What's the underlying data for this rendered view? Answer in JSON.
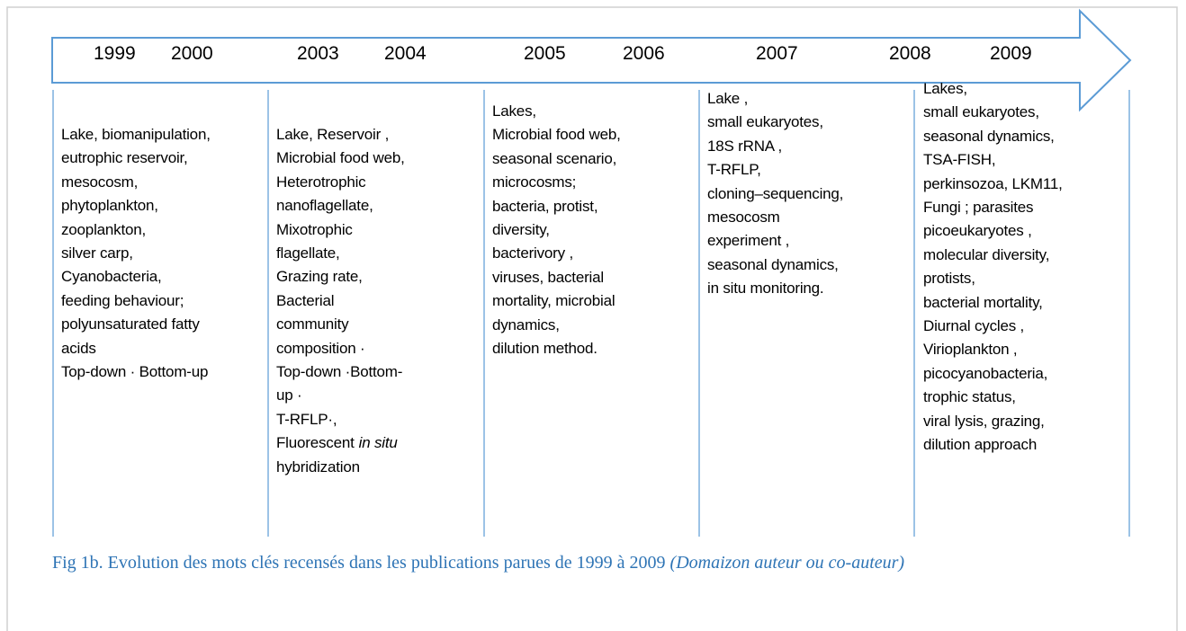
{
  "years": [
    "1999",
    "2000",
    "2003",
    "2004",
    "2005",
    "2006",
    "2007",
    "2008",
    "2009"
  ],
  "columns": [
    {
      "lines": [
        "Lake, biomanipulation,",
        "eutrophic reservoir,",
        "mesocosm,",
        "phytoplankton,",
        "zooplankton,",
        "silver carp,",
        "Cyanobacteria,",
        "feeding behaviour;",
        "polyunsaturated fatty",
        "acids",
        "Top-down · Bottom-up"
      ]
    },
    {
      "lines": [
        "Lake, Reservoir ,",
        "Microbial food web,",
        "Heterotrophic",
        "nanoflagellate,",
        "Mixotrophic",
        "flagellate,",
        "Grazing rate,",
        "Bacterial",
        "community",
        "composition ·",
        "Top-down ·Bottom-",
        "up ·",
        "T-RFLP·,",
        [
          "Fluorescent",
          "in situ"
        ],
        "hybridization"
      ]
    },
    {
      "lines": [
        "Lakes,",
        "Microbial food web,",
        "seasonal scenario,",
        "microcosms;",
        "bacteria, protist,",
        "diversity,",
        "bacterivory ,",
        "viruses, bacterial",
        "mortality, microbial",
        "dynamics,",
        "dilution method."
      ]
    },
    {
      "lines": [
        "Lake ,",
        "small eukaryotes,",
        "18S rRNA ,",
        "T-RFLP,",
        "cloning–sequencing,",
        "mesocosm",
        "experiment ,",
        "seasonal dynamics,",
        "in situ monitoring."
      ]
    },
    {
      "lines": [
        "Lakes,",
        "small eukaryotes,",
        "seasonal dynamics,",
        "TSA-FISH,",
        "perkinsozoa, LKM11,",
        "Fungi ; parasites",
        "picoeukaryotes ,",
        "molecular diversity,",
        "protists,",
        "bacterial mortality,",
        "Diurnal cycles ,",
        "Virioplankton ,",
        "picocyanobacteria,",
        "trophic status,",
        "viral lysis, grazing,",
        "dilution approach"
      ]
    }
  ],
  "caption": {
    "text": "Fig 1b. Evolution des mots clés recensés dans les publications parues de 1999 à 2009",
    "note": "(Domaizon  auteur ou co-auteur)"
  }
}
